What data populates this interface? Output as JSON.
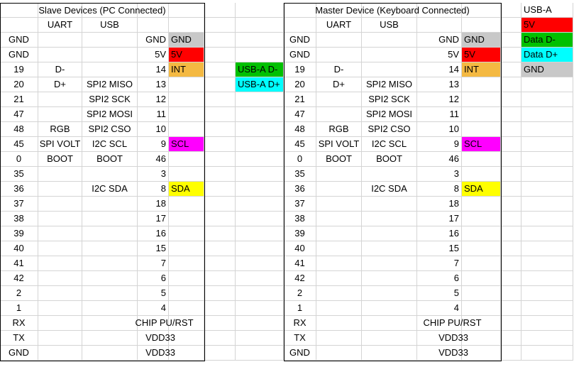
{
  "colors": {
    "gnd": "#c8c8c8",
    "power": "#ff0000",
    "int": "#f4b942",
    "scl": "#ff00ff",
    "sda": "#ffff00",
    "data_minus": "#00c000",
    "data_plus": "#00ffff"
  },
  "slave": {
    "title": "Slave Devices (PC Connected)",
    "headers": [
      "UART",
      "USB"
    ],
    "rows": [
      [
        "GND",
        "",
        "",
        "GND",
        "GND"
      ],
      [
        "GND",
        "",
        "",
        "5V",
        "5V"
      ],
      [
        "19",
        "D-",
        "",
        "14",
        "INT"
      ],
      [
        "20",
        "D+",
        "SPI2 MISO",
        "13",
        ""
      ],
      [
        "21",
        "",
        "SPI2 SCK",
        "12",
        ""
      ],
      [
        "47",
        "",
        "SPI2 MOSI",
        "11",
        ""
      ],
      [
        "48",
        "RGB",
        "SPI2 CSO",
        "10",
        ""
      ],
      [
        "45",
        "SPI VOLT",
        "I2C SCL",
        "9",
        "SCL"
      ],
      [
        "0",
        "BOOT",
        "BOOT",
        "46",
        ""
      ],
      [
        "35",
        "",
        "",
        "3",
        ""
      ],
      [
        "36",
        "",
        "I2C SDA",
        "8",
        "SDA"
      ],
      [
        "37",
        "",
        "",
        "18",
        ""
      ],
      [
        "38",
        "",
        "",
        "17",
        ""
      ],
      [
        "39",
        "",
        "",
        "16",
        ""
      ],
      [
        "40",
        "",
        "",
        "15",
        ""
      ],
      [
        "41",
        "",
        "",
        "7",
        ""
      ],
      [
        "42",
        "",
        "",
        "6",
        ""
      ],
      [
        "2",
        "",
        "",
        "5",
        ""
      ],
      [
        "1",
        "",
        "",
        "4",
        ""
      ],
      [
        "RX",
        "",
        "",
        "CHIP PU/RST",
        ""
      ],
      [
        "TX",
        "",
        "",
        "VDD33",
        ""
      ],
      [
        "GND",
        "",
        "",
        "VDD33",
        ""
      ]
    ]
  },
  "master": {
    "title": "Master Device (Keyboard Connected)",
    "headers": [
      "UART",
      "USB"
    ],
    "side_labels": [
      "USB-A D-",
      "USB-A D+"
    ],
    "rows": [
      [
        "GND",
        "",
        "",
        "GND",
        "GND"
      ],
      [
        "GND",
        "",
        "",
        "5V",
        "5V"
      ],
      [
        "19",
        "D-",
        "",
        "14",
        "INT"
      ],
      [
        "20",
        "D+",
        "SPI2 MISO",
        "13",
        ""
      ],
      [
        "21",
        "",
        "SPI2 SCK",
        "12",
        ""
      ],
      [
        "47",
        "",
        "SPI2 MOSI",
        "11",
        ""
      ],
      [
        "48",
        "RGB",
        "SPI2 CSO",
        "10",
        ""
      ],
      [
        "45",
        "SPI VOLT",
        "I2C SCL",
        "9",
        "SCL"
      ],
      [
        "0",
        "BOOT",
        "BOOT",
        "46",
        ""
      ],
      [
        "35",
        "",
        "",
        "3",
        ""
      ],
      [
        "36",
        "",
        "I2C SDA",
        "8",
        "SDA"
      ],
      [
        "37",
        "",
        "",
        "18",
        ""
      ],
      [
        "38",
        "",
        "",
        "17",
        ""
      ],
      [
        "39",
        "",
        "",
        "16",
        ""
      ],
      [
        "40",
        "",
        "",
        "15",
        ""
      ],
      [
        "41",
        "",
        "",
        "7",
        ""
      ],
      [
        "42",
        "",
        "",
        "6",
        ""
      ],
      [
        "2",
        "",
        "",
        "5",
        ""
      ],
      [
        "1",
        "",
        "",
        "4",
        ""
      ],
      [
        "RX",
        "",
        "",
        "CHIP PU/RST",
        ""
      ],
      [
        "TX",
        "",
        "",
        "VDD33",
        ""
      ],
      [
        "GND",
        "",
        "",
        "VDD33",
        ""
      ]
    ]
  },
  "legend": {
    "title": "USB-A",
    "items": [
      {
        "label": "5V",
        "color": "#ff0000"
      },
      {
        "label": "Data D-",
        "color": "#00c000"
      },
      {
        "label": "Data D+",
        "color": "#00ffff"
      },
      {
        "label": "GND",
        "color": "#c8c8c8"
      }
    ]
  }
}
